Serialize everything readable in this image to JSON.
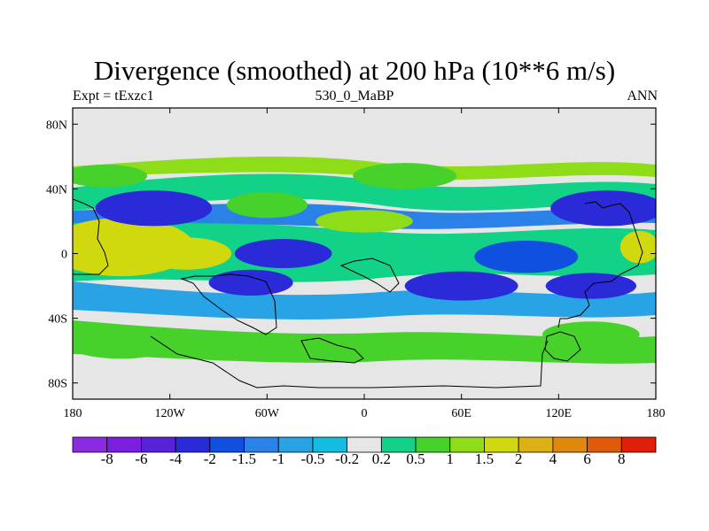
{
  "title": "Divergence (smoothed) at 200 hPa (10**6 m/s)",
  "subtitle_left": "Expt = tExzc1",
  "subtitle_center": "530_0_MaBP",
  "subtitle_right": "ANN",
  "chart_data": {
    "type": "heatmap",
    "title": "Divergence (smoothed) at 200 hPa (10**6 m/s)",
    "xlim": [
      -180,
      180
    ],
    "ylim": [
      -90,
      90
    ],
    "x_ticks": [
      {
        "value": -180,
        "label": "180"
      },
      {
        "value": -120,
        "label": "120W"
      },
      {
        "value": -60,
        "label": "60W"
      },
      {
        "value": 0,
        "label": "0"
      },
      {
        "value": 60,
        "label": "60E"
      },
      {
        "value": 120,
        "label": "120E"
      },
      {
        "value": 180,
        "label": "180"
      }
    ],
    "y_ticks": [
      {
        "value": 80,
        "label": "80N"
      },
      {
        "value": 40,
        "label": "40N"
      },
      {
        "value": 0,
        "label": "0"
      },
      {
        "value": -40,
        "label": "40S"
      },
      {
        "value": -80,
        "label": "80S"
      }
    ],
    "colorbar": {
      "colors": [
        "#8a2be2",
        "#7a1fe0",
        "#5a22d8",
        "#2a2ad8",
        "#1050e0",
        "#2a82e8",
        "#27a3e6",
        "#14bde0",
        "#e6e6e6",
        "#12d287",
        "#46d22a",
        "#8fdc18",
        "#d2d80e",
        "#ddb014",
        "#e0880e",
        "#e05a0a",
        "#e01e0a"
      ],
      "labels": [
        "-8",
        "-6",
        "-4",
        "-2",
        "-1.5",
        "-1",
        "-0.5",
        "-0.2",
        "0.2",
        "0.5",
        "1",
        "1.5",
        "2",
        "4",
        "6",
        "8"
      ]
    },
    "anomalies": [
      {
        "lon": -150,
        "lat": 3,
        "w": 32,
        "h": 10,
        "level": 13
      },
      {
        "lon": -110,
        "lat": 0,
        "w": 28,
        "h": 10,
        "level": 12
      },
      {
        "lon": -150,
        "lat": 4,
        "w": 45,
        "h": 18,
        "level": 12
      },
      {
        "lon": -50,
        "lat": 0,
        "w": 30,
        "h": 9,
        "level": 3
      },
      {
        "lon": 100,
        "lat": -2,
        "w": 32,
        "h": 10,
        "level": 4
      },
      {
        "lon": -130,
        "lat": 28,
        "w": 36,
        "h": 11,
        "level": 3
      },
      {
        "lon": 150,
        "lat": 28,
        "w": 35,
        "h": 11,
        "level": 3
      },
      {
        "lon": 170,
        "lat": 4,
        "w": 12,
        "h": 10,
        "level": 12
      },
      {
        "lon": -160,
        "lat": 48,
        "w": 26,
        "h": 7,
        "level": 10
      },
      {
        "lon": 25,
        "lat": 48,
        "w": 32,
        "h": 8,
        "level": 10
      },
      {
        "lon": -70,
        "lat": -18,
        "w": 26,
        "h": 8,
        "level": 3
      },
      {
        "lon": 60,
        "lat": -20,
        "w": 35,
        "h": 9,
        "level": 3
      },
      {
        "lon": 140,
        "lat": -20,
        "w": 28,
        "h": 8,
        "level": 3
      },
      {
        "lon": -150,
        "lat": -55,
        "w": 35,
        "h": 10,
        "level": 10
      },
      {
        "lon": 140,
        "lat": -50,
        "w": 30,
        "h": 8,
        "level": 10
      },
      {
        "lon": 0,
        "lat": 20,
        "w": 30,
        "h": 7,
        "level": 11
      },
      {
        "lon": -60,
        "lat": 30,
        "w": 25,
        "h": 8,
        "level": 10
      }
    ]
  }
}
